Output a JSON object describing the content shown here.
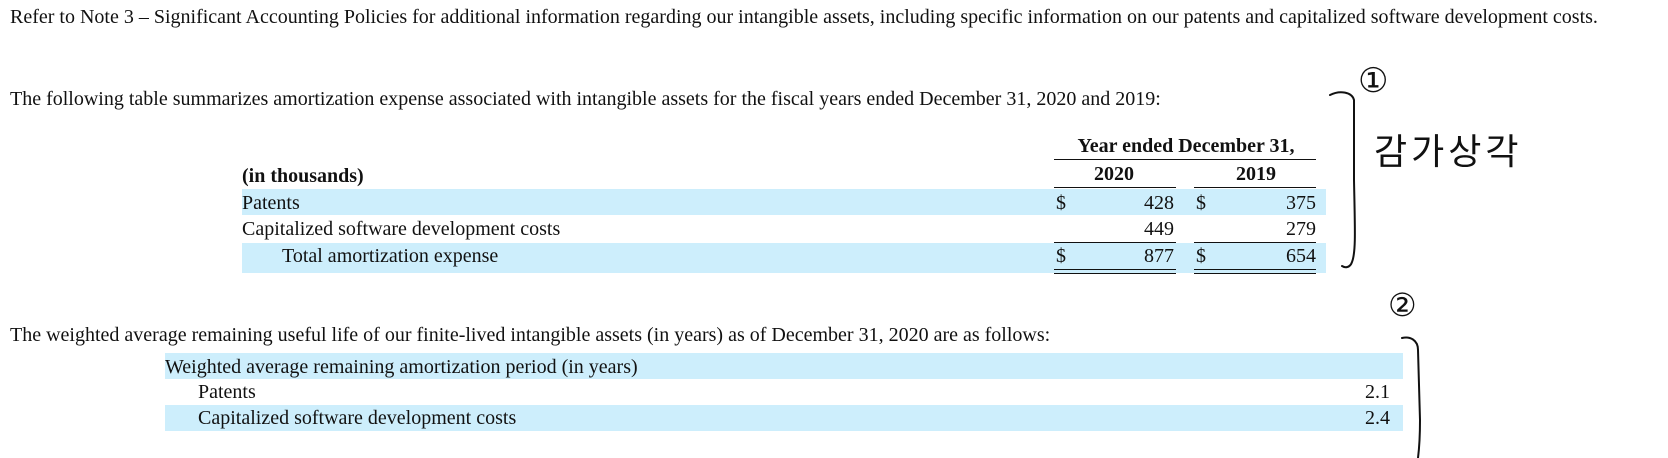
{
  "intro": {
    "paragraph1": "Refer to Note 3 – Significant Accounting Policies for additional information regarding our intangible assets, including specific information on our patents and capitalized software development costs.",
    "paragraph2": "The following table summarizes amortization expense associated with intangible assets for the fiscal years ended December 31, 2020 and 2019:"
  },
  "amortization_table": {
    "group_header": "Year ended December 31,",
    "unit_label": "(in thousands)",
    "columns": [
      "2020",
      "2019"
    ],
    "currency_symbol": "$",
    "rows": [
      {
        "label": "Patents",
        "values": [
          "428",
          "375"
        ]
      },
      {
        "label": "Capitalized software development costs",
        "values": [
          "449",
          "279"
        ]
      },
      {
        "label": "Total amortization expense",
        "values": [
          "877",
          "654"
        ]
      }
    ],
    "row_fill_color": "#cdeefc"
  },
  "life_section": {
    "paragraph": "The weighted average remaining useful life of our finite-lived intangible assets (in years) as of December 31, 2020 are as follows:",
    "table": {
      "header": "Weighted average remaining amortization period (in years)",
      "rows": [
        {
          "label": "Patents",
          "value": "2.1"
        },
        {
          "label": "Capitalized software development costs",
          "value": "2.4"
        }
      ]
    }
  },
  "annotations": {
    "marker_1": "①",
    "korean_note": "감가상각",
    "marker_2": "②"
  }
}
